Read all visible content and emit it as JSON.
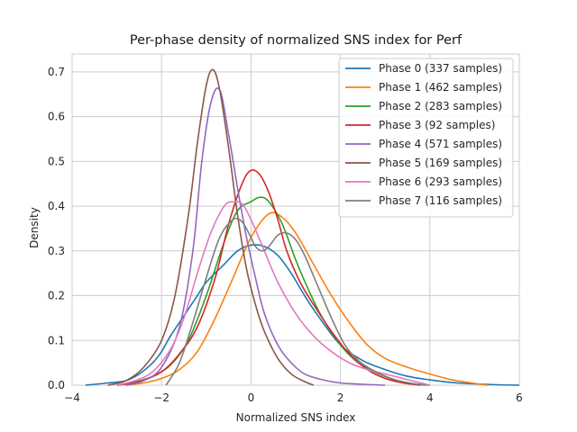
{
  "chart_data": {
    "type": "line",
    "title": "Per-phase density of normalized SNS index for Perf",
    "xlabel": "Normalized SNS index",
    "ylabel": "Density",
    "xlim": [
      -4.0,
      6.0
    ],
    "ylim": [
      0.0,
      0.74
    ],
    "xticks": [
      -4,
      -2,
      0,
      2,
      4,
      6
    ],
    "yticks": [
      0.0,
      0.1,
      0.2,
      0.3,
      0.4,
      0.5,
      0.6,
      0.7
    ],
    "grid": true,
    "legend_position": "top-right",
    "series": [
      {
        "name": "Phase 0 (337 samples)",
        "color": "#1f77b4",
        "x": [
          -3.7,
          -3.2,
          -2.8,
          -2.5,
          -2.2,
          -2.0,
          -1.8,
          -1.5,
          -1.2,
          -1.0,
          -0.6,
          -0.3,
          0.0,
          0.3,
          0.6,
          0.9,
          1.2,
          1.5,
          2.0,
          2.5,
          3.0,
          3.5,
          4.0,
          4.5,
          5.0,
          5.5,
          6.0
        ],
        "y": [
          0.0,
          0.005,
          0.01,
          0.025,
          0.05,
          0.075,
          0.11,
          0.155,
          0.2,
          0.23,
          0.27,
          0.3,
          0.313,
          0.31,
          0.29,
          0.25,
          0.2,
          0.155,
          0.09,
          0.055,
          0.035,
          0.02,
          0.012,
          0.006,
          0.003,
          0.001,
          0.0
        ]
      },
      {
        "name": "Phase 1 (462 samples)",
        "color": "#ff7f0e",
        "x": [
          -2.8,
          -2.4,
          -2.0,
          -1.6,
          -1.2,
          -0.8,
          -0.4,
          0.0,
          0.4,
          0.7,
          1.0,
          1.4,
          1.8,
          2.2,
          2.6,
          3.0,
          3.5,
          4.0,
          4.5,
          5.0,
          5.3
        ],
        "y": [
          0.0,
          0.005,
          0.015,
          0.035,
          0.075,
          0.15,
          0.24,
          0.33,
          0.383,
          0.375,
          0.34,
          0.27,
          0.2,
          0.14,
          0.09,
          0.06,
          0.04,
          0.025,
          0.012,
          0.004,
          0.0
        ]
      },
      {
        "name": "Phase 2 (283 samples)",
        "color": "#2ca02c",
        "x": [
          -3.0,
          -2.6,
          -2.2,
          -1.8,
          -1.4,
          -1.0,
          -0.6,
          -0.3,
          0.0,
          0.2,
          0.4,
          0.7,
          1.0,
          1.3,
          1.6,
          2.0,
          2.4,
          2.8,
          3.2,
          3.6,
          4.0
        ],
        "y": [
          0.0,
          0.007,
          0.02,
          0.045,
          0.1,
          0.2,
          0.32,
          0.39,
          0.41,
          0.42,
          0.41,
          0.36,
          0.28,
          0.21,
          0.15,
          0.09,
          0.05,
          0.028,
          0.012,
          0.004,
          0.0
        ]
      },
      {
        "name": "Phase 3 (92 samples)",
        "color": "#d62728",
        "x": [
          -3.0,
          -2.5,
          -2.0,
          -1.6,
          -1.2,
          -0.8,
          -0.5,
          -0.2,
          0.0,
          0.2,
          0.4,
          0.6,
          0.8,
          1.1,
          1.4,
          1.8,
          2.2,
          2.6,
          3.0,
          3.4,
          3.8
        ],
        "y": [
          0.0,
          0.008,
          0.03,
          0.07,
          0.13,
          0.24,
          0.36,
          0.45,
          0.48,
          0.47,
          0.43,
          0.37,
          0.3,
          0.23,
          0.18,
          0.12,
          0.07,
          0.035,
          0.015,
          0.005,
          0.0
        ]
      },
      {
        "name": "Phase 4 (571 samples)",
        "color": "#9467bd",
        "x": [
          -2.8,
          -2.4,
          -2.0,
          -1.6,
          -1.3,
          -1.1,
          -0.9,
          -0.7,
          -0.5,
          -0.3,
          -0.1,
          0.1,
          0.3,
          0.6,
          0.9,
          1.2,
          1.6,
          2.0,
          2.5,
          3.0
        ],
        "y": [
          0.0,
          0.01,
          0.04,
          0.13,
          0.3,
          0.5,
          0.63,
          0.66,
          0.56,
          0.44,
          0.33,
          0.24,
          0.16,
          0.09,
          0.05,
          0.025,
          0.012,
          0.005,
          0.002,
          0.0
        ]
      },
      {
        "name": "Phase 5 (169 samples)",
        "color": "#8c564b",
        "x": [
          -3.2,
          -2.8,
          -2.4,
          -2.0,
          -1.7,
          -1.4,
          -1.2,
          -1.0,
          -0.85,
          -0.7,
          -0.5,
          -0.3,
          -0.1,
          0.1,
          0.3,
          0.6,
          0.9,
          1.2,
          1.4
        ],
        "y": [
          0.0,
          0.01,
          0.04,
          0.1,
          0.2,
          0.38,
          0.54,
          0.67,
          0.705,
          0.66,
          0.53,
          0.38,
          0.26,
          0.18,
          0.12,
          0.06,
          0.025,
          0.008,
          0.0
        ]
      },
      {
        "name": "Phase 6 (293 samples)",
        "color": "#e377c2",
        "x": [
          -3.0,
          -2.6,
          -2.2,
          -1.8,
          -1.5,
          -1.2,
          -0.9,
          -0.6,
          -0.4,
          -0.2,
          0.0,
          0.3,
          0.6,
          1.0,
          1.4,
          1.8,
          2.2,
          2.6,
          3.0,
          3.4,
          4.0
        ],
        "y": [
          0.0,
          0.01,
          0.03,
          0.08,
          0.15,
          0.25,
          0.34,
          0.4,
          0.41,
          0.405,
          0.37,
          0.3,
          0.23,
          0.16,
          0.11,
          0.075,
          0.05,
          0.035,
          0.025,
          0.015,
          0.0
        ]
      },
      {
        "name": "Phase 7 (116 samples)",
        "color": "#7f7f7f",
        "x": [
          -1.9,
          -1.6,
          -1.3,
          -1.0,
          -0.7,
          -0.4,
          -0.2,
          0.0,
          0.1,
          0.25,
          0.4,
          0.6,
          0.8,
          1.0,
          1.2,
          1.5,
          1.8,
          2.1,
          2.4,
          2.7,
          3.0,
          3.3,
          3.6,
          3.9
        ],
        "y": [
          0.0,
          0.05,
          0.14,
          0.24,
          0.33,
          0.37,
          0.365,
          0.33,
          0.31,
          0.3,
          0.31,
          0.335,
          0.34,
          0.325,
          0.29,
          0.22,
          0.15,
          0.09,
          0.055,
          0.035,
          0.02,
          0.01,
          0.004,
          0.0
        ]
      }
    ]
  }
}
